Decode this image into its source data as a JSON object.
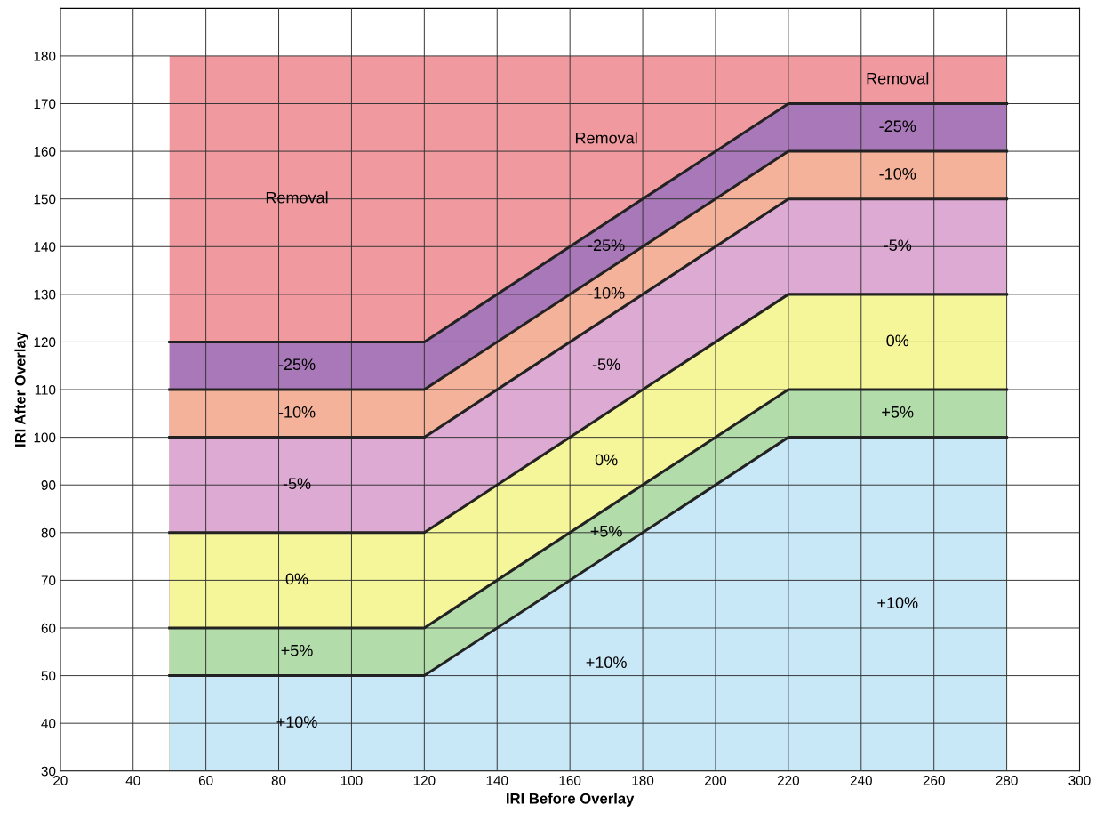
{
  "chart_data": {
    "type": "area",
    "xlabel": "IRI Before Overlay",
    "ylabel": "IRI After Overlay",
    "x": [
      50,
      120,
      220,
      280
    ],
    "series": [
      {
        "name": "Removal",
        "color": "#f09aa0",
        "values": [
          180,
          180,
          180,
          180
        ]
      },
      {
        "name": "-25%",
        "color": "#a878b8",
        "values": [
          120,
          120,
          170,
          170
        ],
        "line_style": "solid"
      },
      {
        "name": "-10%",
        "color": "#f5b29a",
        "values": [
          110,
          110,
          160,
          160
        ],
        "line_style": "solid"
      },
      {
        "name": "-5%",
        "color": "#dcaad2",
        "values": [
          100,
          100,
          150,
          150
        ],
        "line_style": "solid"
      },
      {
        "name": "0%",
        "color": "#f5f59a",
        "values": [
          80,
          80,
          130,
          130
        ],
        "line_style": "solid"
      },
      {
        "name": "+5%",
        "color": "#b2dcaa",
        "values": [
          60,
          60,
          110,
          110
        ],
        "line_style": "solid"
      },
      {
        "name": "+10%",
        "color": "#c8e8f8",
        "values": [
          50,
          50,
          100,
          100
        ],
        "line_style": "solid"
      }
    ],
    "xlim": [
      20,
      300
    ],
    "xticks": [
      20,
      40,
      60,
      80,
      100,
      120,
      140,
      160,
      180,
      200,
      220,
      240,
      260,
      280,
      300
    ],
    "ylim": [
      30,
      190
    ],
    "yticks": [
      30,
      40,
      50,
      60,
      70,
      80,
      90,
      100,
      110,
      120,
      130,
      140,
      150,
      160,
      170,
      180
    ],
    "grid": true
  }
}
